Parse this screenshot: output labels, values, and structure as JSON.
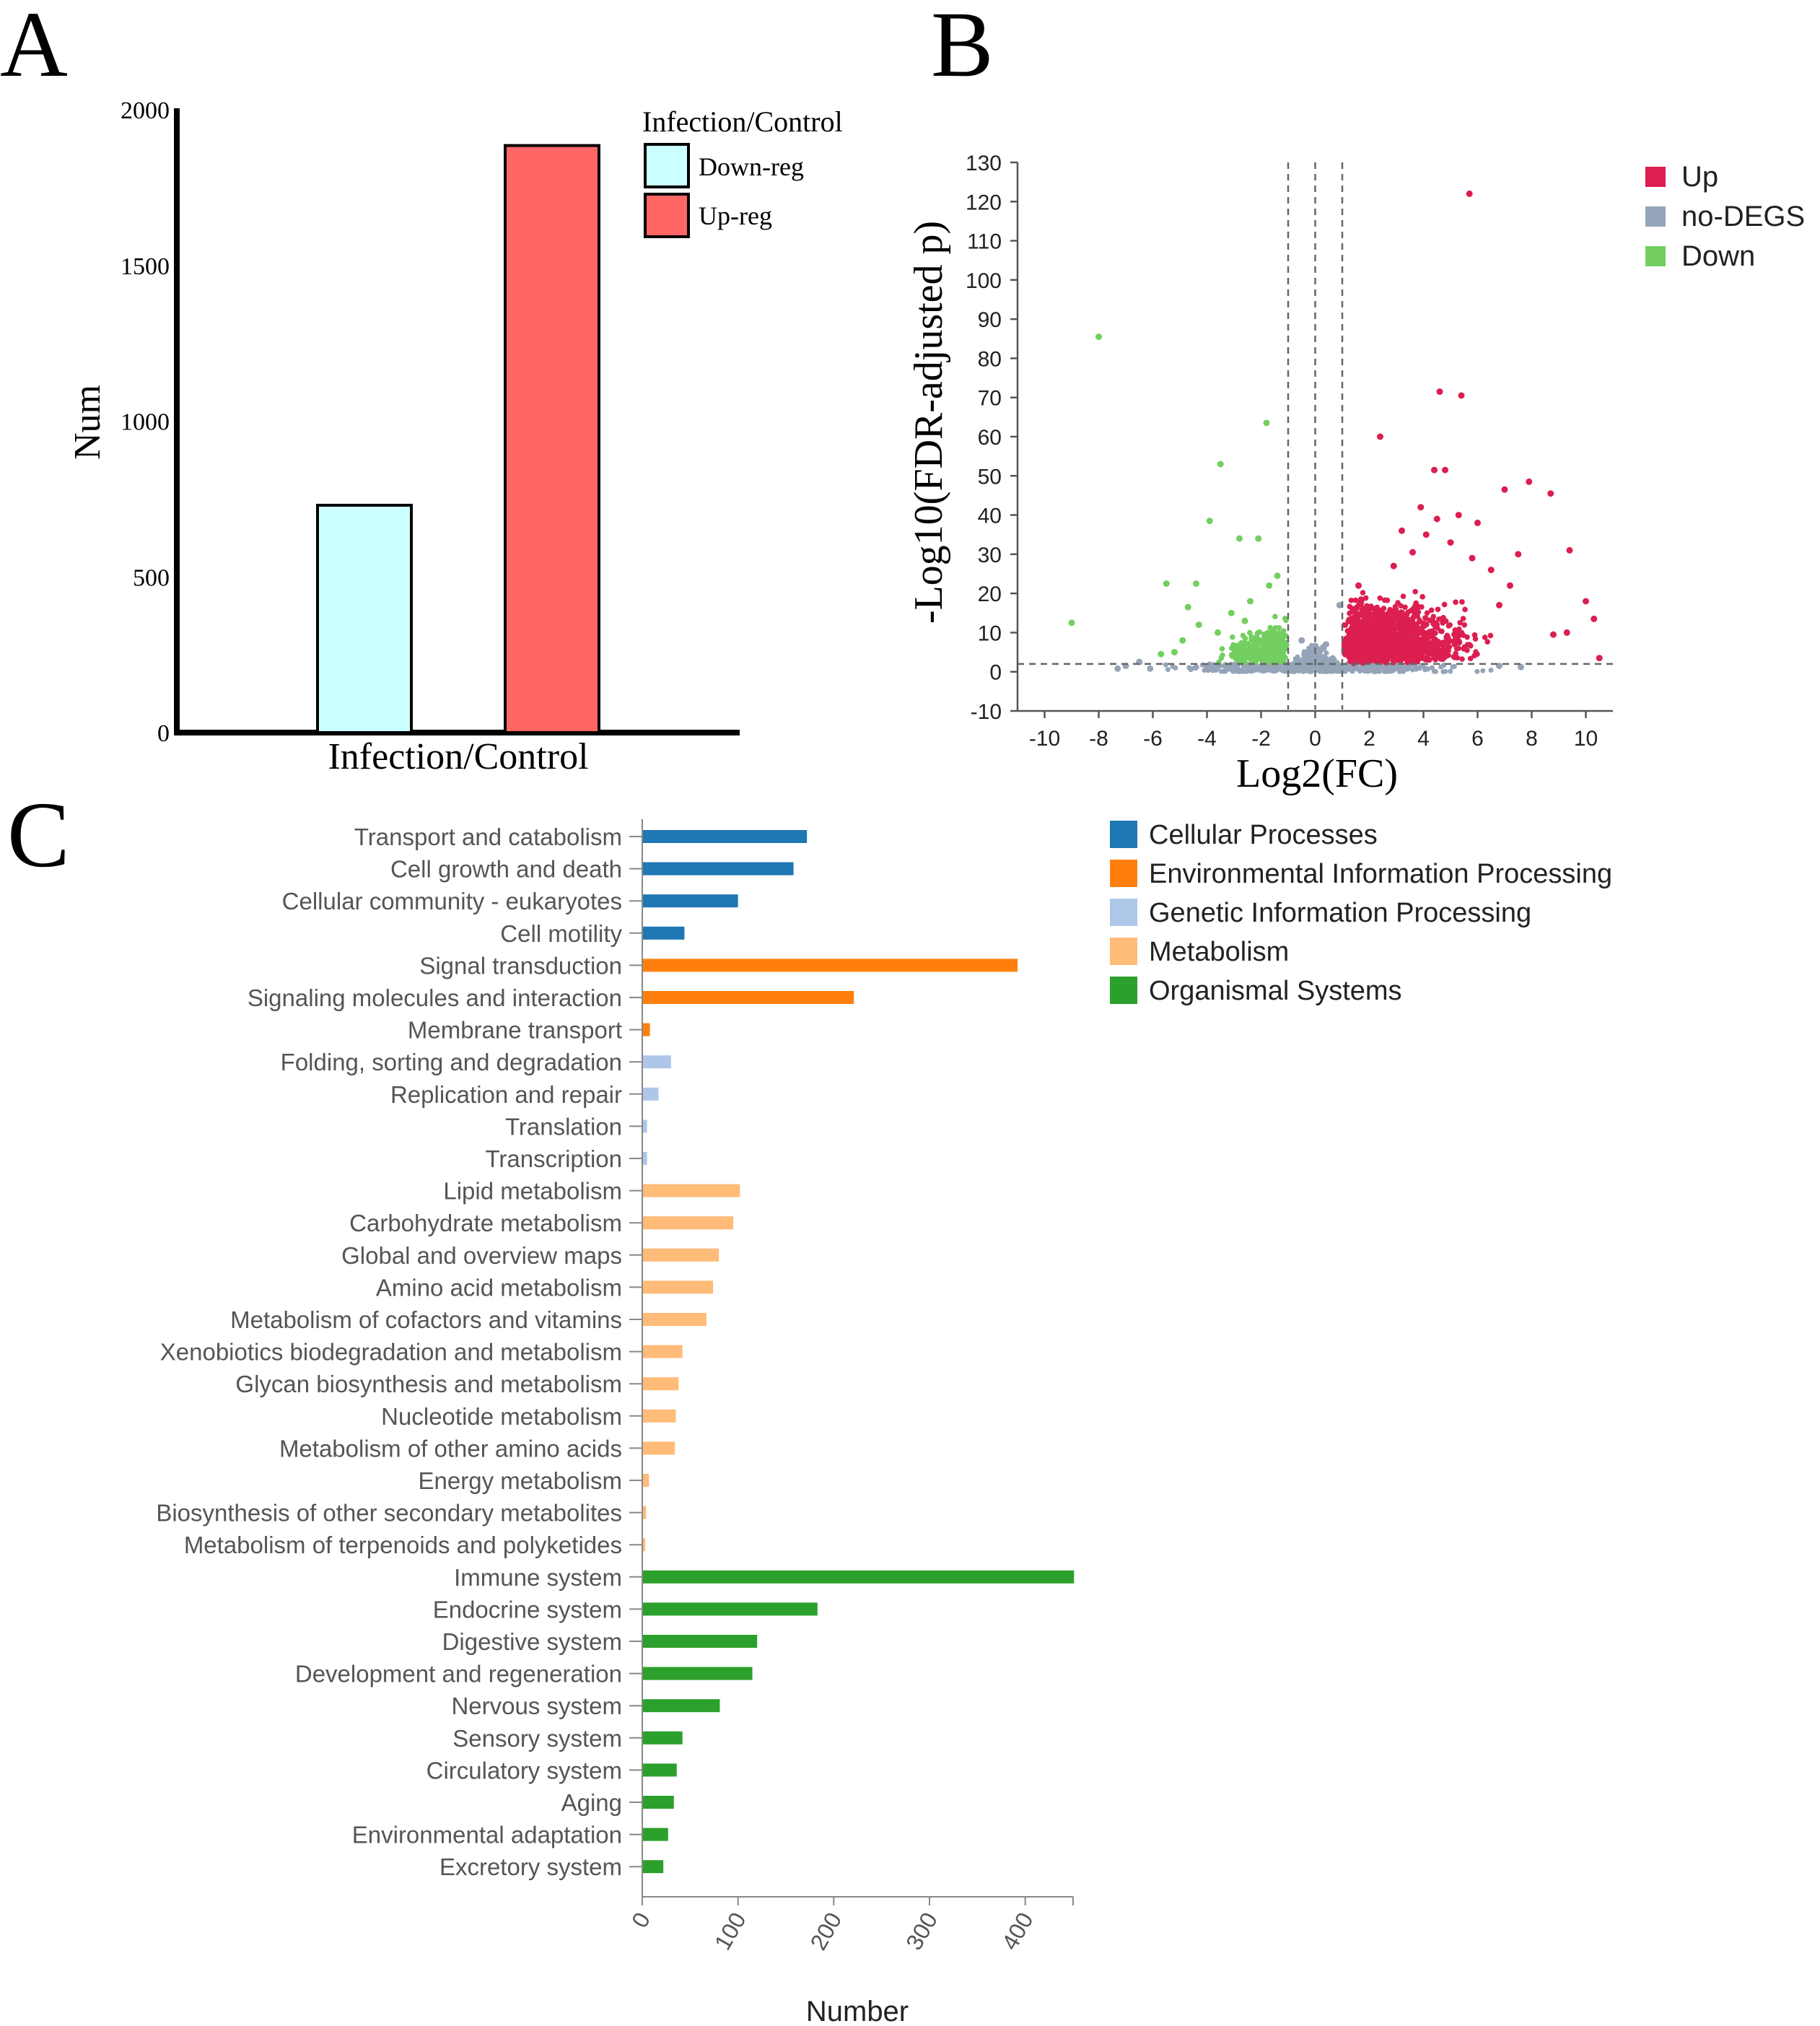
{
  "colors": {
    "down_reg": "#ccffff",
    "up_reg": "#ff6666",
    "volcano_up": "#dc1e50",
    "volcano_nodegs": "#95a4b8",
    "volcano_down": "#73cf5f",
    "cellular": "#1f77b4",
    "environmental": "#ff7f0e",
    "genetic": "#aec7e8",
    "metabolism": "#ffbb78",
    "organismal": "#2ca02c",
    "axis_gray": "#555555",
    "label_gray": "#555555"
  },
  "panels": {
    "a": {
      "letter": "A"
    },
    "b": {
      "letter": "B"
    },
    "c": {
      "letter": "C"
    }
  },
  "chart_data": [
    {
      "panel": "A",
      "type": "bar",
      "categories": [
        "Down-reg",
        "Up-reg"
      ],
      "values": [
        730,
        1885
      ],
      "xlabel": "Infection/Control",
      "ylabel": "Num",
      "ylim": [
        0,
        2000
      ],
      "yticks": [
        0,
        500,
        1000,
        1500,
        2000
      ],
      "legend": {
        "title": "Infection/Control",
        "entries": [
          "Down-reg",
          "Up-reg"
        ],
        "placement": "top-right"
      }
    },
    {
      "panel": "B",
      "type": "scatter",
      "xlabel": "Log2(FC)",
      "ylabel": "-Log10(FDR-adjusted p)",
      "xlim": [
        -11,
        11
      ],
      "ylim": [
        -10,
        130
      ],
      "xticks": [
        -10,
        -8,
        -6,
        -4,
        -2,
        0,
        2,
        4,
        6,
        8,
        10
      ],
      "yticks": [
        -10,
        0,
        10,
        20,
        30,
        40,
        50,
        60,
        70,
        80,
        90,
        100,
        110,
        120,
        130
      ],
      "thresholds": {
        "x": [
          -1,
          0,
          1
        ],
        "y": [
          2
        ]
      },
      "series": [
        {
          "name": "Up",
          "points": [
            [
              5.7,
              122
            ],
            [
              4.6,
              71.5
            ],
            [
              5.4,
              70.5
            ],
            [
              2.4,
              60
            ],
            [
              4.4,
              51.5
            ],
            [
              4.8,
              51.5
            ],
            [
              7.9,
              48.5
            ],
            [
              7.0,
              46.5
            ],
            [
              8.7,
              45.5
            ],
            [
              3.9,
              42
            ],
            [
              4.5,
              39
            ],
            [
              5.3,
              40
            ],
            [
              6.0,
              38
            ],
            [
              9.4,
              31
            ],
            [
              7.5,
              30
            ],
            [
              5.0,
              33
            ],
            [
              3.6,
              30.5
            ],
            [
              10.0,
              18
            ],
            [
              10.3,
              13.5
            ],
            [
              10.5,
              3.5
            ],
            [
              9.3,
              10
            ],
            [
              8.8,
              9.5
            ],
            [
              6.5,
              26
            ],
            [
              7.2,
              22
            ],
            [
              3.2,
              36
            ],
            [
              2.9,
              27
            ],
            [
              1.6,
              22
            ],
            [
              4.1,
              35
            ],
            [
              5.8,
              29
            ],
            [
              6.8,
              17
            ]
          ]
        },
        {
          "name": "no-DEGS",
          "points": [
            [
              -7.0,
              1.5
            ],
            [
              -6.5,
              2.5
            ],
            [
              -7.3,
              0.8
            ],
            [
              0.9,
              17
            ],
            [
              -0.5,
              8
            ],
            [
              0.4,
              7
            ],
            [
              -0.2,
              3
            ],
            [
              6.8,
              1.5
            ],
            [
              -6.1,
              0.8
            ],
            [
              7.6,
              1.2
            ]
          ]
        },
        {
          "name": "Down",
          "points": [
            [
              -8.0,
              85.5
            ],
            [
              -3.5,
              53
            ],
            [
              -1.8,
              63.5
            ],
            [
              -3.9,
              38.5
            ],
            [
              -2.8,
              34
            ],
            [
              -2.1,
              34
            ],
            [
              -9.0,
              12.5
            ],
            [
              -5.5,
              22.5
            ],
            [
              -4.4,
              22.5
            ],
            [
              -4.7,
              16.5
            ],
            [
              -4.3,
              12
            ],
            [
              -1.4,
              24.5
            ],
            [
              -1.7,
              22
            ],
            [
              -2.4,
              18
            ],
            [
              -3.1,
              15
            ],
            [
              -5.2,
              5
            ],
            [
              -5.7,
              4.5
            ],
            [
              -4.9,
              8
            ],
            [
              -3.6,
              10
            ],
            [
              -2.6,
              13
            ]
          ]
        }
      ],
      "legend": {
        "entries": [
          "Up",
          "no-DEGS",
          "Down"
        ],
        "placement": "top-right"
      }
    },
    {
      "panel": "C",
      "type": "bar",
      "orientation": "horizontal",
      "xlabel": "Number",
      "xlim": [
        0,
        450
      ],
      "xticks": [
        0,
        100,
        200,
        300,
        400
      ],
      "groups": [
        "Cellular Processes",
        "Environmental Information Processing",
        "Genetic Information Processing",
        "Metabolism",
        "Organismal Systems"
      ],
      "categories": [
        "Transport and catabolism",
        "Cell growth and death",
        "Cellular community - eukaryotes",
        "Cell motility",
        "Signal transduction",
        "Signaling molecules and interaction",
        "Membrane transport",
        "Folding, sorting and degradation",
        "Replication and repair",
        "Translation",
        "Transcription",
        "Lipid metabolism",
        "Carbohydrate metabolism",
        "Global and overview maps",
        "Amino acid metabolism",
        "Metabolism of cofactors and vitamins",
        "Xenobiotics biodegradation and metabolism",
        "Glycan biosynthesis and metabolism",
        "Nucleotide metabolism",
        "Metabolism of other amino acids",
        "Energy metabolism",
        "Biosynthesis of other secondary metabolites",
        "Metabolism of terpenoids and polyketides",
        "Immune system",
        "Endocrine system",
        "Digestive system",
        "Development and regeneration",
        "Nervous system",
        "Sensory system",
        "Circulatory system",
        "Aging",
        "Environmental adaptation",
        "Excretory system"
      ],
      "values": [
        172,
        158,
        100,
        44,
        392,
        221,
        8,
        30,
        17,
        5,
        5,
        102,
        95,
        80,
        74,
        67,
        42,
        38,
        35,
        34,
        7,
        4,
        3,
        451,
        183,
        120,
        115,
        81,
        42,
        36,
        33,
        27,
        22
      ],
      "group_index": [
        0,
        0,
        0,
        0,
        1,
        1,
        1,
        2,
        2,
        2,
        2,
        3,
        3,
        3,
        3,
        3,
        3,
        3,
        3,
        3,
        3,
        3,
        3,
        4,
        4,
        4,
        4,
        4,
        4,
        4,
        4,
        4,
        4
      ],
      "legend": {
        "entries": [
          "Cellular Processes",
          "Environmental Information Processing",
          "Genetic Information Processing",
          "Metabolism",
          "Organismal Systems"
        ],
        "placement": "top-right"
      }
    }
  ]
}
